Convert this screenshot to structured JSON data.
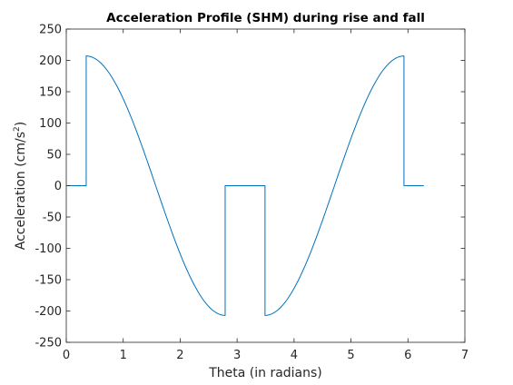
{
  "chart_data": {
    "type": "line",
    "title": "Acceleration Profile (SHM) during rise and fall",
    "xlabel": "Theta (in radians)",
    "ylabel_base": "Acceleration (cm/s",
    "ylabel_sup": "2",
    "ylabel_close": ")",
    "xlim": [
      0,
      7
    ],
    "ylim": [
      -250,
      250
    ],
    "xticks": [
      0,
      1,
      2,
      3,
      4,
      5,
      6,
      7
    ],
    "yticks": [
      -250,
      -200,
      -150,
      -100,
      -50,
      0,
      50,
      100,
      150,
      200,
      250
    ],
    "xtick_labels": [
      "0",
      "1",
      "2",
      "3",
      "4",
      "5",
      "6",
      "7"
    ],
    "ytick_labels": [
      "-250",
      "-200",
      "-150",
      "-100",
      "-50",
      "0",
      "50",
      "100",
      "150",
      "200",
      "250"
    ],
    "grid": false,
    "series": [
      {
        "color": "#0072BD",
        "segments": [
          {
            "kind": "constant",
            "x_start": 0.0,
            "x_end": 0.35,
            "value": 0
          },
          {
            "kind": "cosine",
            "x_start": 0.35,
            "x_end": 2.79,
            "amplitude": 207
          },
          {
            "kind": "constant",
            "x_start": 2.79,
            "x_end": 3.49,
            "value": 0
          },
          {
            "kind": "cosine",
            "x_start": 3.49,
            "x_end": 5.93,
            "amplitude": -207
          },
          {
            "kind": "constant",
            "x_start": 5.93,
            "x_end": 6.28,
            "value": 0
          }
        ]
      }
    ]
  }
}
